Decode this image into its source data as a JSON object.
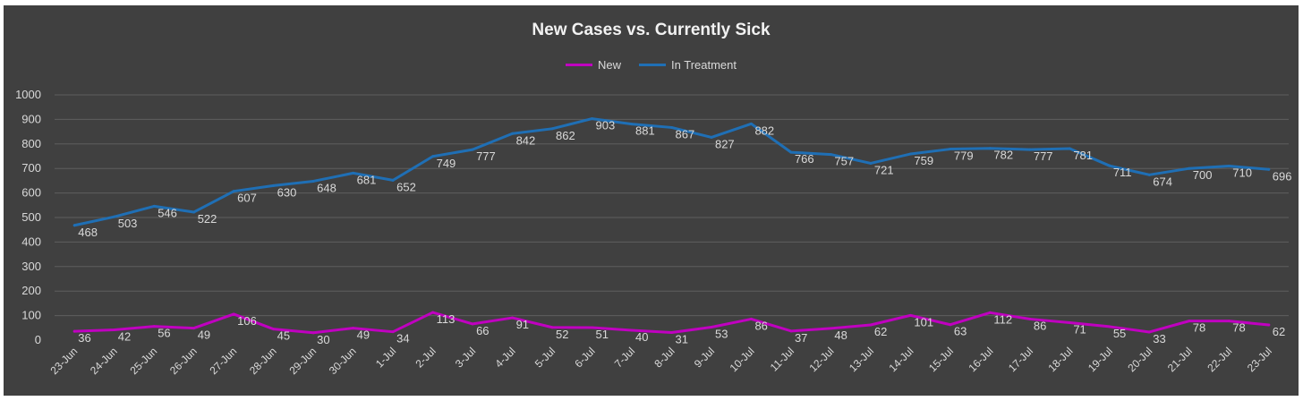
{
  "chart_data": {
    "type": "line",
    "title": "New Cases vs. Currently Sick",
    "xlabel": "",
    "ylabel": "",
    "ylim": [
      0,
      1000
    ],
    "yticks": [
      0,
      100,
      200,
      300,
      400,
      500,
      600,
      700,
      800,
      900,
      1000
    ],
    "grid": true,
    "legend_position": "top",
    "categories": [
      "23-Jun",
      "24-Jun",
      "25-Jun",
      "26-Jun",
      "27-Jun",
      "28-Jun",
      "29-Jun",
      "30-Jun",
      "1-Jul",
      "2-Jul",
      "3-Jul",
      "4-Jul",
      "5-Jul",
      "6-Jul",
      "7-Jul",
      "8-Jul",
      "9-Jul",
      "10-Jul",
      "11-Jul",
      "12-Jul",
      "13-Jul",
      "14-Jul",
      "15-Jul",
      "16-Jul",
      "17-Jul",
      "18-Jul",
      "19-Jul",
      "20-Jul",
      "21-Jul",
      "22-Jul",
      "23-Jul"
    ],
    "series": [
      {
        "name": "New",
        "color": "#c000c0",
        "values": [
          36,
          42,
          56,
          49,
          106,
          45,
          30,
          49,
          34,
          113,
          66,
          91,
          52,
          51,
          40,
          31,
          53,
          86,
          37,
          48,
          62,
          101,
          63,
          112,
          86,
          71,
          55,
          33,
          78,
          78,
          62
        ]
      },
      {
        "name": "In Treatment",
        "color": "#1f6fb5",
        "values": [
          468,
          503,
          546,
          522,
          607,
          630,
          648,
          681,
          652,
          749,
          777,
          842,
          862,
          903,
          881,
          867,
          827,
          882,
          766,
          757,
          721,
          759,
          779,
          782,
          777,
          781,
          711,
          674,
          700,
          710,
          696
        ]
      }
    ]
  },
  "colors": {
    "background": "#404040",
    "gridline": "#5e5e5e",
    "text": "#d9d9d9"
  }
}
